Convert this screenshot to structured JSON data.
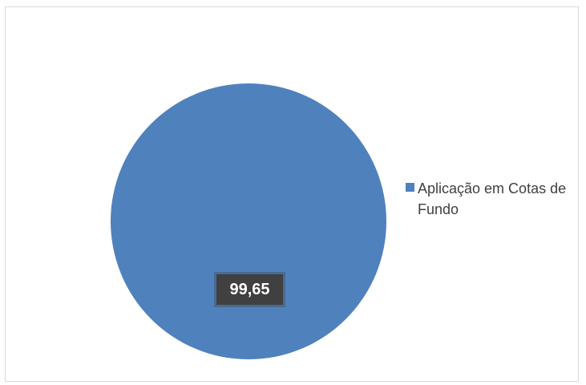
{
  "chart_data": {
    "type": "pie",
    "categories": [
      "Aplicação em Cotas de Fundo"
    ],
    "values": [
      99.65
    ],
    "data_labels": [
      "99,65"
    ],
    "colors": [
      "#4f81bd"
    ],
    "legend": {
      "placement": "right",
      "entries": [
        "Aplicação em Cotas de Fundo"
      ]
    },
    "title": "",
    "grid": false
  }
}
